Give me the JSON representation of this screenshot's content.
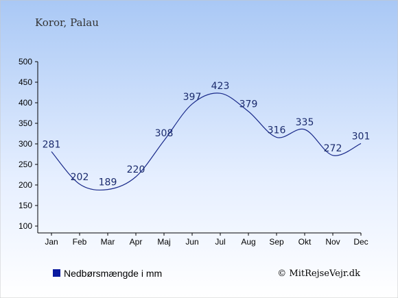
{
  "chart_data": {
    "type": "line",
    "title": "Koror, Palau",
    "categories": [
      "Jan",
      "Feb",
      "Mar",
      "Apr",
      "Maj",
      "Jun",
      "Jul",
      "Aug",
      "Sep",
      "Okt",
      "Nov",
      "Dec"
    ],
    "series": [
      {
        "name": "Nedbørsmængde i mm",
        "values": [
          281,
          202,
          189,
          220,
          308,
          397,
          423,
          379,
          316,
          335,
          272,
          301
        ]
      }
    ],
    "yticks": [
      100,
      150,
      200,
      250,
      300,
      350,
      400,
      450,
      500
    ],
    "ylim": [
      100,
      500
    ],
    "grid": false,
    "legend": "bottom-left",
    "credit": "© MitRejseVejr.dk",
    "colors": {
      "line": "#1a2a8a",
      "legend_marker": "#0a1aa0",
      "background_top": "#a9c8f5",
      "background_bottom": "#ffffff"
    }
  }
}
